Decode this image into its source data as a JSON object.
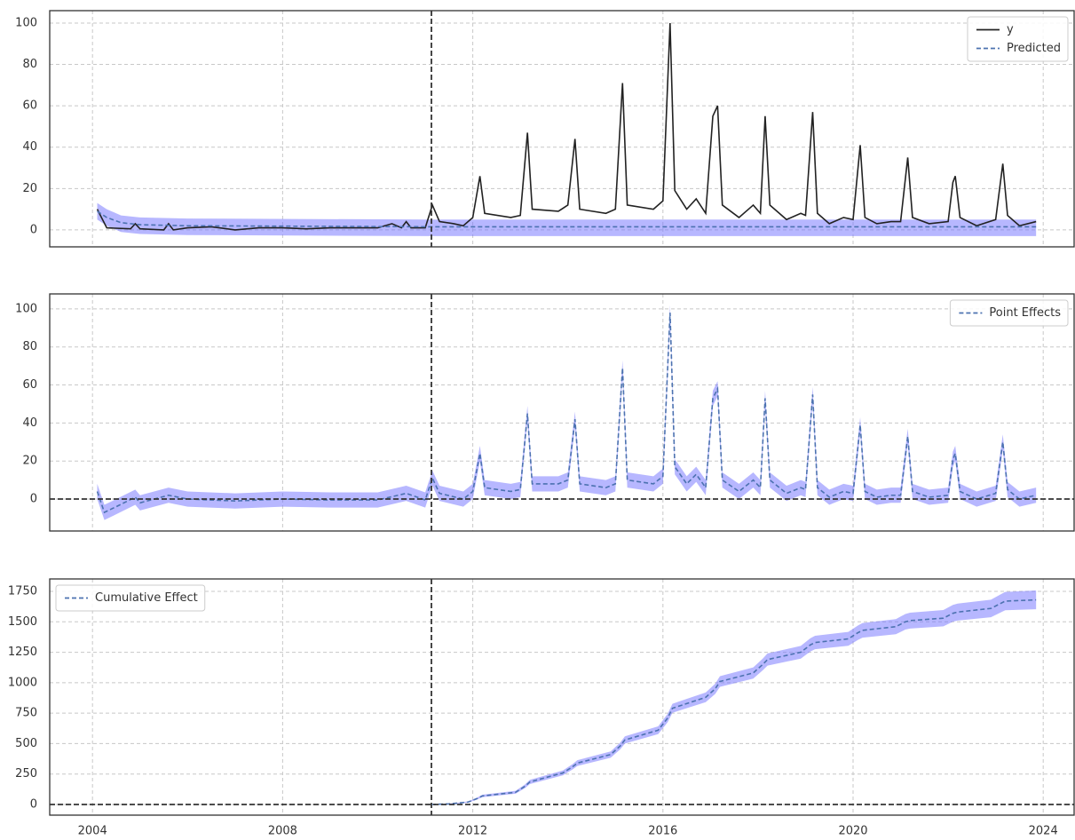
{
  "chart_data": [
    {
      "type": "line",
      "xlim": [
        2003.1,
        2024.65
      ],
      "xticks": [
        2004,
        2008,
        2012,
        2016,
        2020,
        2024
      ],
      "xticklabels": false,
      "ylim": [
        -8.2,
        106
      ],
      "yticks": [
        0,
        20,
        40,
        60,
        80,
        100
      ],
      "grid": true,
      "vline": 2011.13,
      "legend": "upper right",
      "series": [
        {
          "name": "y",
          "color": "#222222",
          "dashed": false,
          "x": [
            2004.1,
            2004.3,
            2004.8,
            2004.9,
            2005.0,
            2005.5,
            2005.6,
            2005.7,
            2006,
            2006.5,
            2007,
            2007.5,
            2008,
            2008.5,
            2009,
            2009.5,
            2010,
            2010.3,
            2010.5,
            2010.6,
            2010.7,
            2011.0,
            2011.15,
            2011.3,
            2011.6,
            2011.8,
            2012.0,
            2012.15,
            2012.25,
            2012.8,
            2013.0,
            2013.15,
            2013.25,
            2013.8,
            2014.0,
            2014.15,
            2014.25,
            2014.8,
            2015.0,
            2015.15,
            2015.25,
            2015.8,
            2016.0,
            2016.15,
            2016.25,
            2016.5,
            2016.7,
            2016.9,
            2017.05,
            2017.15,
            2017.25,
            2017.6,
            2017.9,
            2018.05,
            2018.15,
            2018.25,
            2018.6,
            2018.9,
            2019.0,
            2019.15,
            2019.25,
            2019.5,
            2019.8,
            2020.0,
            2020.15,
            2020.25,
            2020.5,
            2020.8,
            2021.0,
            2021.15,
            2021.25,
            2021.6,
            2022.0,
            2022.1,
            2022.15,
            2022.25,
            2022.6,
            2023.0,
            2023.15,
            2023.25,
            2023.5,
            2023.85
          ],
          "values": [
            10,
            1,
            0.5,
            3,
            0.5,
            0,
            3,
            0,
            1,
            1.5,
            0,
            1,
            1,
            0.5,
            1,
            1,
            1,
            3,
            1,
            4,
            1,
            1,
            12,
            4,
            3,
            2,
            6,
            26,
            8,
            6,
            7,
            47,
            10,
            9,
            12,
            44,
            10,
            8,
            10,
            71,
            12,
            10,
            14,
            100,
            19,
            10,
            15,
            8,
            55,
            60,
            12,
            6,
            12,
            8,
            55,
            12,
            5,
            8,
            7,
            57,
            8,
            3,
            6,
            5,
            41,
            6,
            3,
            4,
            4,
            35,
            6,
            3,
            4,
            23,
            26,
            6,
            2,
            5,
            32,
            7,
            2,
            4
          ]
        },
        {
          "name": "Predicted",
          "color": "#4c72b0",
          "dashed": true,
          "band_color": "#7070ff",
          "x": [
            2004.1,
            2004.3,
            2004.6,
            2005,
            2006,
            2011.13,
            2023.85
          ],
          "values": [
            9,
            6,
            3.5,
            2.5,
            2,
            1.5,
            1.5
          ],
          "lower": [
            5,
            2,
            -1,
            -2,
            -2.5,
            -3,
            -3
          ],
          "upper": [
            13,
            10,
            7,
            6,
            5.5,
            5,
            5
          ]
        }
      ]
    },
    {
      "type": "line",
      "xlim": [
        2003.1,
        2024.65
      ],
      "xticks": [
        2004,
        2008,
        2012,
        2016,
        2020,
        2024
      ],
      "xticklabels": false,
      "ylim": [
        -16.8,
        107.9
      ],
      "yticks": [
        0,
        20,
        40,
        60,
        80,
        100
      ],
      "grid": true,
      "vline": 2011.13,
      "hline": 0,
      "legend": "upper right",
      "series": [
        {
          "name": "Point Effects",
          "color": "#4c72b0",
          "dashed": true,
          "band_color": "#7070ff",
          "x": [
            2004.1,
            2004.25,
            2004.5,
            2004.9,
            2005,
            2005.6,
            2006,
            2007,
            2008,
            2009,
            2010,
            2010.6,
            2011.0,
            2011.15,
            2011.3,
            2011.8,
            2012.0,
            2012.15,
            2012.25,
            2012.8,
            2013.0,
            2013.15,
            2013.25,
            2013.8,
            2014,
            2014.15,
            2014.25,
            2014.8,
            2015,
            2015.15,
            2015.25,
            2015.8,
            2016,
            2016.15,
            2016.25,
            2016.5,
            2016.7,
            2016.9,
            2017.05,
            2017.15,
            2017.25,
            2017.6,
            2017.9,
            2018.05,
            2018.15,
            2018.25,
            2018.6,
            2018.9,
            2019,
            2019.15,
            2019.25,
            2019.5,
            2019.8,
            2020,
            2020.15,
            2020.25,
            2020.5,
            2020.8,
            2021,
            2021.15,
            2021.25,
            2021.6,
            2022,
            2022.1,
            2022.15,
            2022.25,
            2022.6,
            2023,
            2023.15,
            2023.25,
            2023.5,
            2023.85
          ],
          "values": [
            4,
            -7,
            -4,
            1,
            -2,
            2,
            0,
            -1,
            0,
            -0.5,
            -0.5,
            3,
            -0.5,
            11,
            3,
            0,
            4,
            24,
            6,
            4,
            5,
            45,
            8,
            8,
            10,
            42,
            8,
            6,
            8,
            69,
            10,
            8,
            12,
            98,
            17,
            8,
            13,
            6,
            53,
            58,
            10,
            4,
            10,
            6,
            53,
            10,
            3,
            6,
            5,
            55,
            6,
            1,
            4,
            3,
            39,
            4,
            1,
            2,
            2,
            33,
            4,
            1,
            2,
            21,
            24,
            4,
            0,
            3,
            30,
            5,
            0,
            2
          ],
          "lower": [
            0,
            -11,
            -8,
            -3,
            -6,
            -2,
            -4,
            -5,
            -4,
            -4.5,
            -4.5,
            -1,
            -4.5,
            7,
            -1,
            -4,
            0,
            20,
            2,
            0,
            1,
            41,
            4,
            4,
            6,
            38,
            4,
            2,
            4,
            65,
            6,
            4,
            8,
            94,
            13,
            4,
            9,
            2,
            49,
            54,
            6,
            0,
            6,
            2,
            49,
            6,
            -1,
            2,
            1,
            51,
            2,
            -3,
            0,
            -1,
            35,
            0,
            -3,
            -2,
            -2,
            29,
            0,
            -3,
            -2,
            17,
            20,
            0,
            -4,
            -1,
            26,
            1,
            -4,
            -2
          ],
          "upper": [
            8,
            -3,
            0,
            5,
            2,
            6,
            4,
            3,
            4,
            3.5,
            3.5,
            7,
            3.5,
            15,
            7,
            4,
            8,
            28,
            10,
            8,
            9,
            49,
            12,
            12,
            14,
            46,
            12,
            10,
            12,
            73,
            14,
            12,
            16,
            102,
            21,
            12,
            17,
            10,
            57,
            62,
            14,
            8,
            14,
            10,
            57,
            14,
            7,
            10,
            9,
            59,
            10,
            5,
            8,
            7,
            43,
            8,
            5,
            6,
            6,
            37,
            8,
            5,
            6,
            25,
            28,
            8,
            4,
            7,
            34,
            9,
            4,
            6
          ]
        }
      ]
    },
    {
      "type": "line",
      "xlim": [
        2003.1,
        2024.65
      ],
      "xticks": [
        2004,
        2008,
        2012,
        2016,
        2020,
        2024
      ],
      "xticklabels": true,
      "ylim": [
        -87.5,
        1852
      ],
      "yticks": [
        0,
        250,
        500,
        750,
        1000,
        1250,
        1500,
        1750
      ],
      "grid": true,
      "vline": 2011.13,
      "hline": 0,
      "legend": "upper left",
      "series": [
        {
          "name": "Cumulative Effect",
          "color": "#4c72b0",
          "dashed": true,
          "band_color": "#7070ff",
          "x": [
            2011.13,
            2011.5,
            2011.9,
            2012.1,
            2012.2,
            2012.9,
            2013.1,
            2013.2,
            2013.9,
            2014.1,
            2014.2,
            2014.9,
            2015.1,
            2015.2,
            2015.9,
            2016.1,
            2016.2,
            2016.9,
            2017.1,
            2017.2,
            2017.9,
            2018.1,
            2018.2,
            2018.9,
            2019.1,
            2019.2,
            2019.9,
            2020.1,
            2020.2,
            2020.9,
            2021.1,
            2021.2,
            2021.9,
            2022.1,
            2022.2,
            2022.9,
            2023.1,
            2023.2,
            2023.85
          ],
          "values": [
            0,
            5,
            20,
            50,
            70,
            100,
            150,
            185,
            260,
            310,
            340,
            410,
            480,
            530,
            610,
            710,
            790,
            880,
            950,
            1010,
            1080,
            1150,
            1190,
            1250,
            1310,
            1330,
            1360,
            1410,
            1430,
            1460,
            1500,
            1510,
            1530,
            1570,
            1580,
            1610,
            1650,
            1670,
            1680
          ],
          "lower": [
            0,
            2,
            15,
            42,
            60,
            88,
            135,
            168,
            240,
            288,
            316,
            384,
            452,
            500,
            578,
            675,
            753,
            840,
            908,
            966,
            1034,
            1102,
            1140,
            1198,
            1256,
            1275,
            1303,
            1351,
            1370,
            1398,
            1436,
            1445,
            1463,
            1501,
            1510,
            1538,
            1576,
            1595,
            1603
          ],
          "upper": [
            0,
            8,
            25,
            58,
            80,
            112,
            165,
            202,
            280,
            332,
            364,
            436,
            508,
            560,
            642,
            745,
            827,
            920,
            992,
            1054,
            1126,
            1198,
            1240,
            1302,
            1364,
            1385,
            1417,
            1469,
            1490,
            1522,
            1564,
            1575,
            1597,
            1639,
            1650,
            1682,
            1724,
            1745,
            1757
          ]
        }
      ]
    }
  ]
}
